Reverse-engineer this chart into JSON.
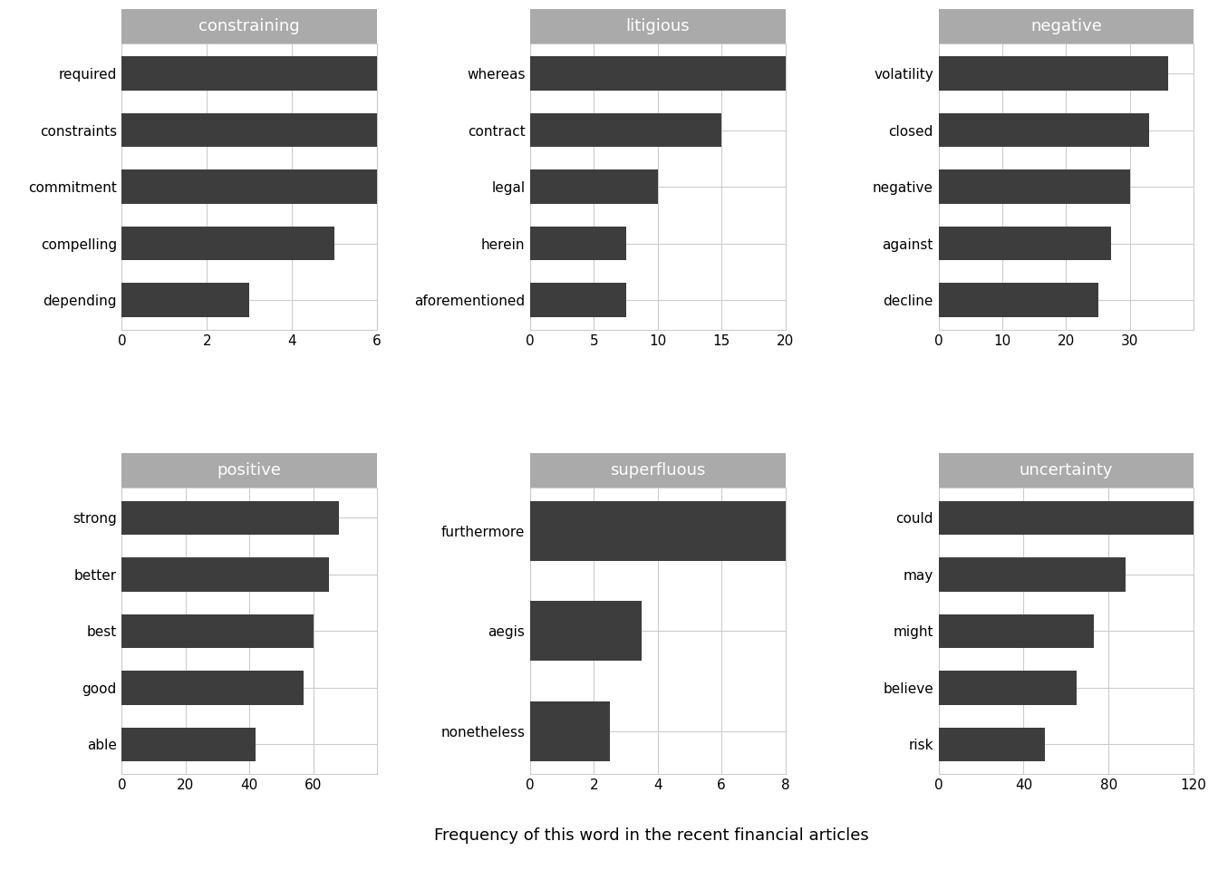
{
  "subplots": [
    {
      "title": "constraining",
      "words": [
        "depending",
        "compelling",
        "commitment",
        "constraints",
        "required"
      ],
      "values": [
        3,
        5,
        6,
        6,
        6
      ],
      "xlim": [
        0,
        6
      ],
      "xticks": [
        0,
        2,
        4,
        6
      ]
    },
    {
      "title": "litigious",
      "words": [
        "aforementioned",
        "herein",
        "legal",
        "contract",
        "whereas"
      ],
      "values": [
        7.5,
        7.5,
        10,
        15,
        21
      ],
      "xlim": [
        0,
        20
      ],
      "xticks": [
        0,
        5,
        10,
        15,
        20
      ]
    },
    {
      "title": "negative",
      "words": [
        "decline",
        "against",
        "negative",
        "closed",
        "volatility"
      ],
      "values": [
        25,
        27,
        30,
        33,
        36
      ],
      "xlim": [
        0,
        40
      ],
      "xticks": [
        0,
        10,
        20,
        30
      ]
    },
    {
      "title": "positive",
      "words": [
        "able",
        "good",
        "best",
        "better",
        "strong"
      ],
      "values": [
        42,
        57,
        60,
        65,
        68
      ],
      "xlim": [
        0,
        80
      ],
      "xticks": [
        0,
        20,
        40,
        60
      ]
    },
    {
      "title": "superfluous",
      "words": [
        "nonetheless",
        "aegis",
        "furthermore"
      ],
      "values": [
        2.5,
        3.5,
        8
      ],
      "xlim": [
        0,
        8
      ],
      "xticks": [
        0,
        2,
        4,
        6,
        8
      ]
    },
    {
      "title": "uncertainty",
      "words": [
        "risk",
        "believe",
        "might",
        "may",
        "could"
      ],
      "values": [
        50,
        65,
        73,
        88,
        120
      ],
      "xlim": [
        0,
        120
      ],
      "xticks": [
        0,
        40,
        80,
        120
      ]
    }
  ],
  "bar_color": "#3d3d3d",
  "title_bg_color": "#aaaaaa",
  "title_text_color": "#ffffff",
  "xlabel": "Frequency of this word in the recent financial articles",
  "grid_color": "#cccccc",
  "bg_color": "#ffffff",
  "axes_bg_color": "#ffffff",
  "title_fontsize": 13,
  "label_fontsize": 11,
  "xlabel_fontsize": 13
}
